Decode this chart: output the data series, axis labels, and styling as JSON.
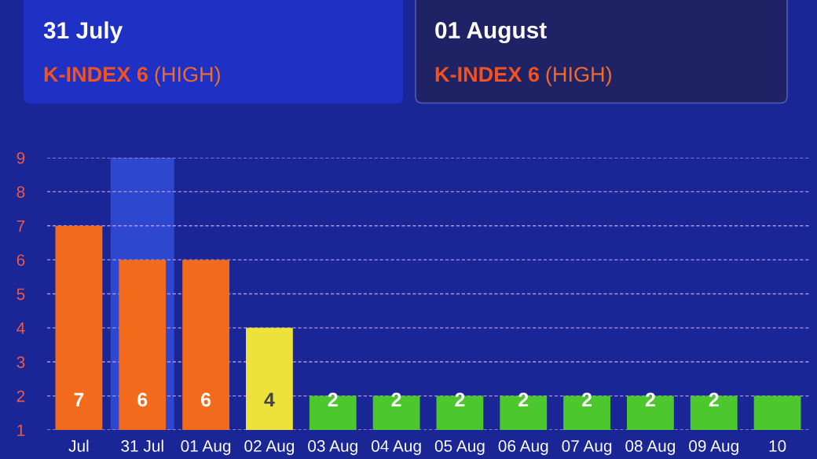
{
  "chart_data": [
    {
      "type": "other",
      "title": "31 July",
      "annotations": [
        "K-INDEX 6",
        "(HIGH)"
      ]
    },
    {
      "type": "other",
      "title": "01 August",
      "annotations": [
        "K-INDEX 6",
        "(HIGH)"
      ]
    },
    {
      "type": "bar",
      "categories": [
        "Jul",
        "31 Jul",
        "01 Aug",
        "02 Aug",
        "03 Aug",
        "04 Aug",
        "05 Aug",
        "06 Aug",
        "07 Aug",
        "08 Aug",
        "09 Aug",
        "10"
      ],
      "values": [
        7,
        6,
        6,
        4,
        2,
        2,
        2,
        2,
        2,
        2,
        2,
        2
      ],
      "colors": [
        "#f26a1c",
        "#f26a1c",
        "#f26a1c",
        "#ede23c",
        "#4cc72e",
        "#4cc72e",
        "#4cc72e",
        "#4cc72e",
        "#4cc72e",
        "#4cc72e",
        "#4cc72e",
        "#4cc72e"
      ],
      "value_labels": [
        "7",
        "6",
        "6",
        "4",
        "2",
        "2",
        "2",
        "2",
        "2",
        "2",
        "2",
        null
      ],
      "ylim": [
        1,
        9
      ],
      "yticks": [
        1,
        2,
        3,
        4,
        5,
        6,
        7,
        8,
        9
      ],
      "grid": "y",
      "bands": [
        {
          "axis": "x",
          "from": "31 Jul",
          "to": "31 Jul",
          "color": "#2d47cf"
        }
      ]
    }
  ]
}
